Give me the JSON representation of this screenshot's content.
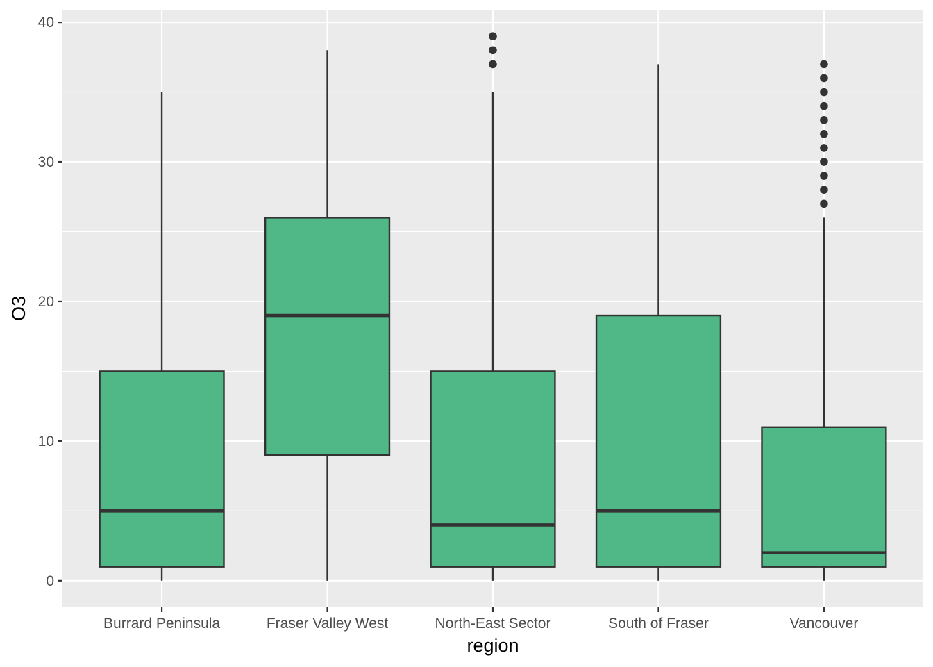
{
  "chart_data": {
    "type": "boxplot",
    "xlabel": "region",
    "ylabel": "O3",
    "ylim": [
      -1.9,
      40.9
    ],
    "yticks": [
      0,
      10,
      20,
      30,
      40
    ],
    "grid": true,
    "colors": {
      "panel": "#ebebeb",
      "grid": "#ffffff",
      "box_fill": "#50b887",
      "stroke": "#333333",
      "tick_text": "#4d4d4d"
    },
    "categories": [
      "Burrard Peninsula",
      "Fraser Valley West",
      "North-East Sector",
      "South of Fraser",
      "Vancouver"
    ],
    "boxes": [
      {
        "category": "Burrard Peninsula",
        "whisker_low": 0,
        "q1": 1,
        "median": 5,
        "q3": 15,
        "whisker_high": 35,
        "outliers": []
      },
      {
        "category": "Fraser Valley West",
        "whisker_low": 0,
        "q1": 9,
        "median": 19,
        "q3": 26,
        "whisker_high": 38,
        "outliers": []
      },
      {
        "category": "North-East Sector",
        "whisker_low": 0,
        "q1": 1,
        "median": 4,
        "q3": 15,
        "whisker_high": 35,
        "outliers": [
          37,
          38,
          39
        ]
      },
      {
        "category": "South of Fraser",
        "whisker_low": 0,
        "q1": 1,
        "median": 5,
        "q3": 19,
        "whisker_high": 37,
        "outliers": []
      },
      {
        "category": "Vancouver",
        "whisker_low": 0,
        "q1": 1,
        "median": 2,
        "q3": 11,
        "whisker_high": 26,
        "outliers": [
          27,
          28,
          29,
          30,
          31,
          32,
          33,
          34,
          35,
          36,
          37
        ]
      }
    ]
  }
}
